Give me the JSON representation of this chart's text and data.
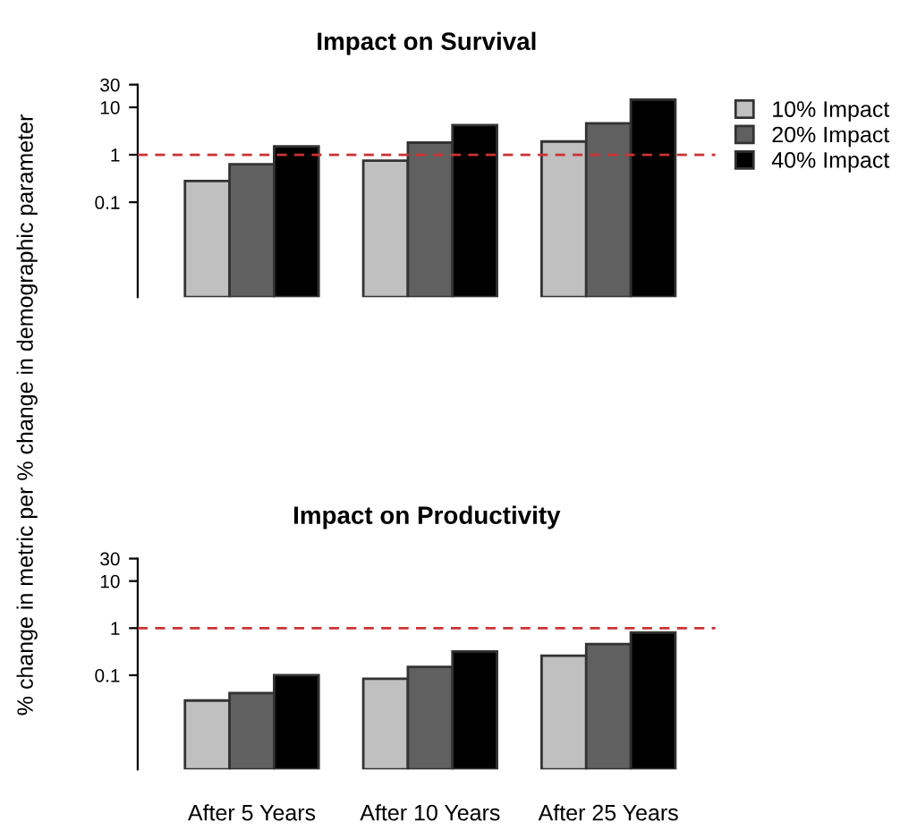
{
  "chart_data": [
    {
      "type": "bar",
      "title": "Impact on Survival",
      "ylabel": "% change in metric per % change in demographic parameter",
      "categories": [
        null,
        null,
        null
      ],
      "series": [
        {
          "name": "10% Impact",
          "color": "#c0c0c0",
          "values": [
            0.28,
            0.75,
            1.9
          ]
        },
        {
          "name": "20% Impact",
          "color": "#606060",
          "values": [
            0.63,
            1.8,
            4.6
          ]
        },
        {
          "name": "40% Impact",
          "color": "#000000",
          "values": [
            1.5,
            4.2,
            14.5
          ]
        }
      ],
      "log": "y",
      "ylim": [
        0.001,
        30
      ],
      "yticks": [
        0.1,
        1,
        10,
        30
      ],
      "tick_labels": "y",
      "grid": false,
      "legend": "top right",
      "ref_lines": [
        {
          "axis": "y",
          "value": 1,
          "color": "#cc3333",
          "line_style": "dashed"
        }
      ]
    },
    {
      "type": "bar",
      "title": "Impact on Productivity",
      "categories": [
        "After 5 Years",
        "After 10 Years",
        "After 25 Years"
      ],
      "series": [
        {
          "color": "#c0c0c0",
          "values": [
            0.029,
            0.084,
            0.26
          ]
        },
        {
          "color": "#606060",
          "values": [
            0.042,
            0.15,
            0.46
          ]
        },
        {
          "color": "#000000",
          "values": [
            0.1,
            0.32,
            0.81
          ]
        }
      ],
      "log": "y",
      "ylim": [
        0.001,
        30
      ],
      "yticks": [
        0.1,
        1,
        10,
        30
      ],
      "grid": false,
      "legend": false,
      "ref_lines": [
        {
          "axis": "y",
          "value": 1,
          "color": "#cc3333",
          "line_style": "dashed"
        }
      ]
    }
  ]
}
